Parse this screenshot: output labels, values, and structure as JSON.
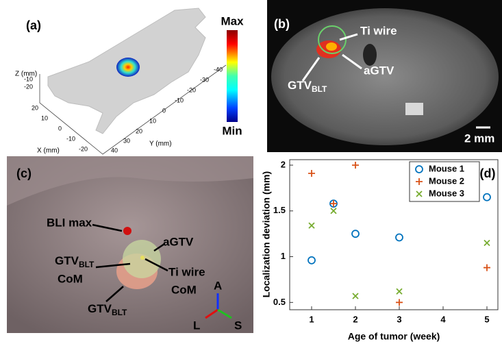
{
  "panels": {
    "a": {
      "label": "(a)",
      "colorbar_max": "Max",
      "colorbar_min": "Min",
      "z_axis_label": "Z (mm)",
      "x_axis_label": "X (mm)",
      "y_axis_label": "Y (mm)",
      "z_ticks": [
        -10,
        -20
      ],
      "x_ticks": [
        20,
        10,
        0,
        -10,
        -20
      ],
      "y_ticks": [
        -40,
        -30,
        -20,
        -10,
        0,
        10,
        20,
        30,
        40
      ]
    },
    "b": {
      "label": "(b)",
      "ti_wire": "Ti wire",
      "agtv": "aGTV",
      "gtv_blt": {
        "main": "GTV",
        "sub": "BLT"
      },
      "scale_bar": "2 mm"
    },
    "c": {
      "label": "(c)",
      "bli_max": "BLI max",
      "agtv": "aGTV",
      "gtv_blt_com": {
        "main": "GTV",
        "sub": "BLT",
        "line2": "CoM"
      },
      "ti_wire_com": {
        "line1": "Ti wire",
        "line2": "CoM"
      },
      "gtv_blt": {
        "main": "GTV",
        "sub": "BLT"
      },
      "axes": [
        "A",
        "L",
        "S"
      ]
    }
  },
  "chart_data": {
    "type": "scatter",
    "panel_label": "(d)",
    "x_label": "Age of tumor (week)",
    "y_label": "Localization deviation (mm)",
    "x": [
      1,
      1.5,
      2,
      3,
      5
    ],
    "series": [
      {
        "name": "Mouse 1",
        "color": "#0072bd",
        "marker": "circle",
        "values": [
          0.96,
          1.58,
          1.25,
          1.21,
          1.65
        ]
      },
      {
        "name": "Mouse 2",
        "color": "#d95319",
        "marker": "plus",
        "values": [
          1.91,
          1.58,
          2.0,
          0.5,
          0.88
        ]
      },
      {
        "name": "Mouse 3",
        "color": "#77ac30",
        "marker": "x",
        "values": [
          1.34,
          1.5,
          0.57,
          0.62,
          1.15
        ]
      }
    ],
    "xlim": [
      0.5,
      5.25
    ],
    "ylim": [
      0.42,
      2.06
    ],
    "xticks": [
      1,
      2,
      3,
      4,
      5
    ],
    "yticks": [
      0.5,
      1,
      1.5,
      2
    ],
    "legend": "upper right"
  }
}
